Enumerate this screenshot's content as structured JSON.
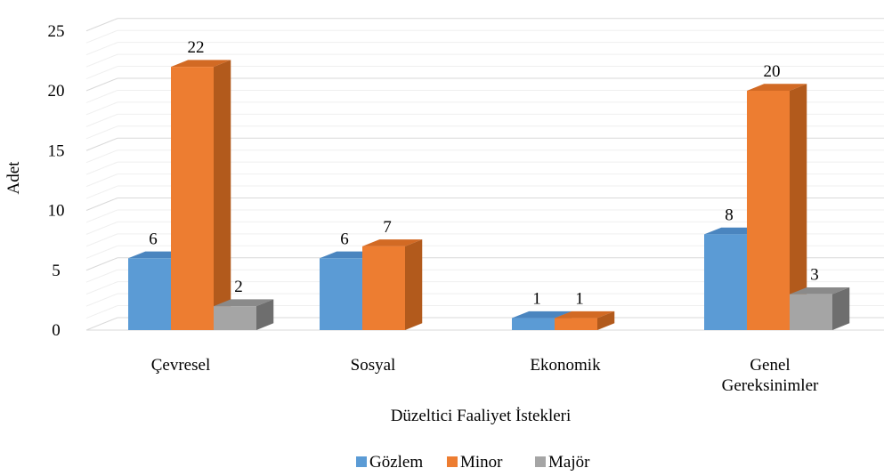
{
  "chart_data": {
    "type": "bar",
    "subtype": "3d-clustered-column",
    "categories": [
      "Çevresel",
      "Sosyal",
      "Ekonomik",
      "Genel Gereksinimler"
    ],
    "category_lines": [
      [
        "Çevresel"
      ],
      [
        "Sosyal"
      ],
      [
        "Ekonomik"
      ],
      [
        "Genel",
        "Gereksinimler"
      ]
    ],
    "series": [
      {
        "name": "Gözlem",
        "color": "#5B9BD5",
        "side": "#3E73A6",
        "top": "#4A85BF",
        "values": [
          6,
          6,
          1,
          8
        ]
      },
      {
        "name": "Minor",
        "color": "#ED7D31",
        "side": "#B25A1C",
        "top": "#D26A24",
        "values": [
          22,
          7,
          1,
          20
        ]
      },
      {
        "name": "Majör",
        "color": "#A5A5A5",
        "side": "#6E6E6E",
        "top": "#8A8A8A",
        "values": [
          2,
          null,
          null,
          3
        ]
      }
    ],
    "xlabel": "Düzeltici Faaliyet İstekleri",
    "ylabel": "Adet",
    "ylim": [
      0,
      25
    ],
    "yticks": [
      0,
      5,
      10,
      15,
      20,
      25
    ],
    "grid": true,
    "legend": "bottom",
    "data_labels": true,
    "gridline_color": "#D9D9D9"
  }
}
